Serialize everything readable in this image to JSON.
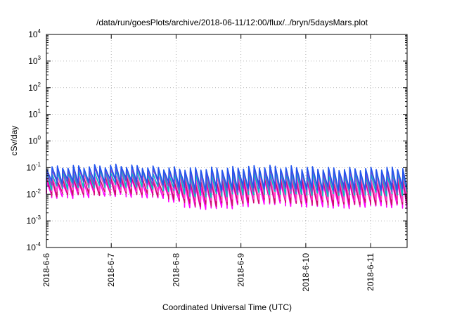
{
  "chart_data": {
    "type": "line",
    "title": "/data/run/goesPlots/archive/2018-06-11/12:00/flux/../bryn/5daysMars.plot",
    "xlabel": "Coordinated Universal Time (UTC)",
    "ylabel": "cSv/day",
    "y_scale": "log",
    "ylim": [
      0.0001,
      10000
    ],
    "xlim": [
      "2018-06-06T00:00",
      "2018-06-11T13:30"
    ],
    "y_ticks": [
      {
        "mantissa": "10",
        "exp": "-4"
      },
      {
        "mantissa": "10",
        "exp": "-3"
      },
      {
        "mantissa": "10",
        "exp": "-2"
      },
      {
        "mantissa": "10",
        "exp": "-1"
      },
      {
        "mantissa": "10",
        "exp": "0"
      },
      {
        "mantissa": "10",
        "exp": "1"
      },
      {
        "mantissa": "10",
        "exp": "2"
      },
      {
        "mantissa": "10",
        "exp": "3"
      },
      {
        "mantissa": "10",
        "exp": "4"
      }
    ],
    "x_ticks": [
      "2018-6-6",
      "2018-6-7",
      "2018-6-8",
      "2018-6-9",
      "2018-6-10",
      "2018-6-11"
    ],
    "grid": true,
    "legend": "none",
    "cycles_per_day": 12.2,
    "series": [
      {
        "color": "#ff00ff",
        "peaks": [
          0.028,
          0.03,
          0.035,
          0.028,
          0.02,
          0.025,
          0.03,
          0.028,
          0.022,
          0.025,
          0.03
        ],
        "troughs": [
          0.008,
          0.009,
          0.01,
          0.008,
          0.003,
          0.0035,
          0.005,
          0.004,
          0.0035,
          0.004,
          0.0035
        ]
      },
      {
        "color": "#cc1166",
        "peaks": [
          0.035,
          0.04,
          0.045,
          0.035,
          0.03,
          0.032,
          0.038,
          0.035,
          0.03,
          0.03,
          0.035
        ],
        "troughs": [
          0.01,
          0.011,
          0.012,
          0.01,
          0.004,
          0.0045,
          0.006,
          0.005,
          0.0045,
          0.005,
          0.0045
        ]
      },
      {
        "color": "#ff44cc",
        "peaks": [
          0.05,
          0.055,
          0.06,
          0.05,
          0.045,
          0.05,
          0.055,
          0.05,
          0.045,
          0.045,
          0.05
        ],
        "troughs": [
          0.014,
          0.015,
          0.016,
          0.014,
          0.006,
          0.0065,
          0.008,
          0.007,
          0.0065,
          0.007,
          0.0065
        ]
      },
      {
        "color": "#00c0c0",
        "peaks": [
          0.065,
          0.07,
          0.08,
          0.065,
          0.06,
          0.065,
          0.07,
          0.065,
          0.06,
          0.06,
          0.065
        ],
        "troughs": [
          0.018,
          0.02,
          0.022,
          0.018,
          0.009,
          0.01,
          0.012,
          0.011,
          0.01,
          0.011,
          0.01
        ]
      },
      {
        "color": "#8844cc",
        "peaks": [
          0.085,
          0.09,
          0.1,
          0.085,
          0.075,
          0.08,
          0.09,
          0.085,
          0.075,
          0.075,
          0.085
        ],
        "troughs": [
          0.025,
          0.027,
          0.03,
          0.025,
          0.013,
          0.014,
          0.017,
          0.015,
          0.014,
          0.015,
          0.014
        ]
      },
      {
        "color": "#2255ee",
        "peaks": [
          0.1,
          0.11,
          0.12,
          0.1,
          0.09,
          0.095,
          0.11,
          0.1,
          0.09,
          0.09,
          0.1
        ],
        "troughs": [
          0.03,
          0.032,
          0.035,
          0.03,
          0.016,
          0.017,
          0.02,
          0.018,
          0.017,
          0.018,
          0.017
        ]
      }
    ]
  }
}
